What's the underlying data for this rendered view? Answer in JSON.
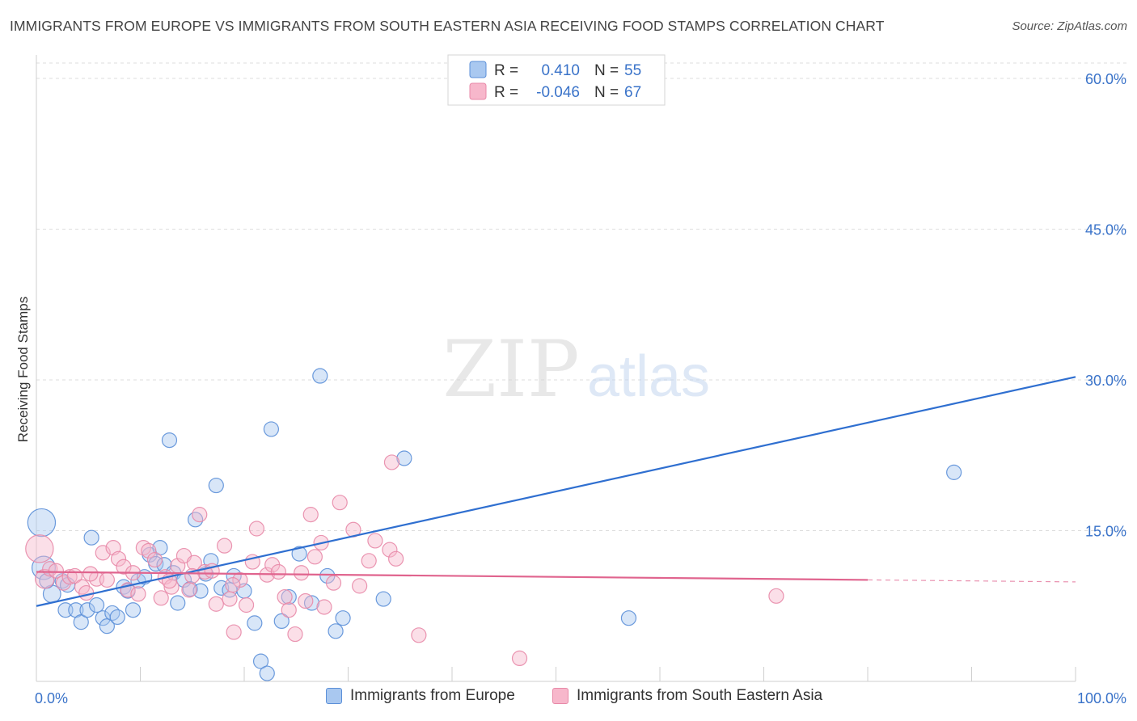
{
  "title": "IMMIGRANTS FROM EUROPE VS IMMIGRANTS FROM SOUTH EASTERN ASIA RECEIVING FOOD STAMPS CORRELATION CHART",
  "source": "Source: ZipAtlas.com",
  "watermark": {
    "zip": "ZIP",
    "atlas": "atlas"
  },
  "colors": {
    "europe_fill": "#a9c8f0",
    "europe_stroke": "#5b8fd8",
    "europe_line": "#2f6fd0",
    "asia_fill": "#f7b7cb",
    "asia_stroke": "#e889a8",
    "asia_line": "#e0648e",
    "tick_label": "#3a73c9",
    "grid": "#dddddd"
  },
  "stats_legend": [
    {
      "series": "europe",
      "r_label": "R =",
      "r_value": "0.410",
      "n_label": "N =",
      "n_value": "55"
    },
    {
      "series": "asia",
      "r_label": "R =",
      "r_value": "-0.046",
      "n_label": "N =",
      "n_value": "67"
    }
  ],
  "chart_data": {
    "type": "scatter",
    "title": "IMMIGRANTS FROM EUROPE VS IMMIGRANTS FROM SOUTH EASTERN ASIA RECEIVING FOOD STAMPS CORRELATION CHART",
    "ylabel": "Receiving Food Stamps",
    "xlabel": "",
    "xlim": [
      0,
      100
    ],
    "ylim": [
      0,
      60
    ],
    "x_ticks": [
      {
        "value": 0,
        "label": "0.0%"
      },
      {
        "value": 100,
        "label": "100.0%"
      }
    ],
    "y_ticks": [
      {
        "value": 15,
        "label": "15.0%"
      },
      {
        "value": 30,
        "label": "30.0%"
      },
      {
        "value": 45,
        "label": "45.0%"
      },
      {
        "value": 60,
        "label": "60.0%"
      }
    ],
    "grid": true,
    "legend_position": "bottom",
    "series": [
      {
        "name": "Immigrants from Europe",
        "key": "europe",
        "r": 0.41,
        "n": 55,
        "trend": {
          "x": [
            0,
            100
          ],
          "y": [
            7.5,
            30.3
          ]
        },
        "points": [
          {
            "x": 0.5,
            "y": 15.8,
            "s": 1.9
          },
          {
            "x": 0.7,
            "y": 11.3,
            "s": 1.6
          },
          {
            "x": 1.5,
            "y": 8.7,
            "s": 1.2
          },
          {
            "x": 1.0,
            "y": 10.0,
            "s": 1.0
          },
          {
            "x": 2.5,
            "y": 10.0,
            "s": 1.0
          },
          {
            "x": 3.0,
            "y": 9.6,
            "s": 1.0
          },
          {
            "x": 2.8,
            "y": 7.1,
            "s": 1.0
          },
          {
            "x": 3.8,
            "y": 7.1,
            "s": 1.0
          },
          {
            "x": 4.3,
            "y": 5.9,
            "s": 1.0
          },
          {
            "x": 4.9,
            "y": 7.1,
            "s": 1.0
          },
          {
            "x": 5.3,
            "y": 14.3,
            "s": 1.0
          },
          {
            "x": 5.8,
            "y": 7.6,
            "s": 1.0
          },
          {
            "x": 6.4,
            "y": 6.3,
            "s": 1.0
          },
          {
            "x": 6.8,
            "y": 5.5,
            "s": 1.0
          },
          {
            "x": 7.3,
            "y": 6.8,
            "s": 1.0
          },
          {
            "x": 7.8,
            "y": 6.4,
            "s": 1.0
          },
          {
            "x": 8.4,
            "y": 9.4,
            "s": 1.0
          },
          {
            "x": 8.8,
            "y": 9.0,
            "s": 1.0
          },
          {
            "x": 9.3,
            "y": 7.1,
            "s": 1.0
          },
          {
            "x": 9.8,
            "y": 10.0,
            "s": 1.0
          },
          {
            "x": 10.4,
            "y": 10.4,
            "s": 1.0
          },
          {
            "x": 10.9,
            "y": 12.6,
            "s": 1.0
          },
          {
            "x": 11.5,
            "y": 11.7,
            "s": 1.0
          },
          {
            "x": 11.9,
            "y": 13.3,
            "s": 1.0
          },
          {
            "x": 12.3,
            "y": 11.6,
            "s": 1.0
          },
          {
            "x": 12.8,
            "y": 24.0,
            "s": 1.0
          },
          {
            "x": 13.2,
            "y": 10.8,
            "s": 1.0
          },
          {
            "x": 13.6,
            "y": 7.8,
            "s": 1.0
          },
          {
            "x": 14.2,
            "y": 10.1,
            "s": 1.0
          },
          {
            "x": 14.8,
            "y": 9.2,
            "s": 1.0
          },
          {
            "x": 15.3,
            "y": 16.1,
            "s": 1.0
          },
          {
            "x": 15.8,
            "y": 9.0,
            "s": 1.0
          },
          {
            "x": 16.3,
            "y": 10.7,
            "s": 1.0
          },
          {
            "x": 16.8,
            "y": 12.0,
            "s": 1.0
          },
          {
            "x": 17.3,
            "y": 19.5,
            "s": 1.0
          },
          {
            "x": 17.8,
            "y": 9.3,
            "s": 1.0
          },
          {
            "x": 18.6,
            "y": 9.1,
            "s": 1.0
          },
          {
            "x": 19.0,
            "y": 10.5,
            "s": 1.0
          },
          {
            "x": 20.0,
            "y": 9.0,
            "s": 1.0
          },
          {
            "x": 21.0,
            "y": 5.8,
            "s": 1.0
          },
          {
            "x": 21.6,
            "y": 2.0,
            "s": 1.0
          },
          {
            "x": 22.2,
            "y": 0.8,
            "s": 1.0
          },
          {
            "x": 22.6,
            "y": 25.1,
            "s": 1.0
          },
          {
            "x": 23.6,
            "y": 6.0,
            "s": 1.0
          },
          {
            "x": 24.3,
            "y": 8.4,
            "s": 1.0
          },
          {
            "x": 25.3,
            "y": 12.7,
            "s": 1.0
          },
          {
            "x": 26.5,
            "y": 7.8,
            "s": 1.0
          },
          {
            "x": 27.3,
            "y": 30.4,
            "s": 1.0
          },
          {
            "x": 28.0,
            "y": 10.5,
            "s": 1.0
          },
          {
            "x": 28.8,
            "y": 5.0,
            "s": 1.0
          },
          {
            "x": 29.5,
            "y": 6.3,
            "s": 1.0
          },
          {
            "x": 33.4,
            "y": 8.2,
            "s": 1.0
          },
          {
            "x": 35.4,
            "y": 22.2,
            "s": 1.0
          },
          {
            "x": 57.0,
            "y": 6.3,
            "s": 1.0
          },
          {
            "x": 88.3,
            "y": 20.8,
            "s": 1.0
          }
        ]
      },
      {
        "name": "Immigrants from South Eastern Asia",
        "key": "asia",
        "r": -0.046,
        "n": 67,
        "trend": {
          "x": [
            0,
            80
          ],
          "y": [
            10.9,
            10.1
          ]
        },
        "trend_dashed": {
          "x": [
            80,
            100
          ],
          "y": [
            10.1,
            9.9
          ]
        },
        "points": [
          {
            "x": 0.3,
            "y": 13.2,
            "s": 1.9
          },
          {
            "x": 0.8,
            "y": 10.2,
            "s": 1.3
          },
          {
            "x": 1.3,
            "y": 11.2,
            "s": 1.0
          },
          {
            "x": 1.9,
            "y": 11.0,
            "s": 1.0
          },
          {
            "x": 2.6,
            "y": 9.8,
            "s": 1.0
          },
          {
            "x": 3.2,
            "y": 10.4,
            "s": 1.0
          },
          {
            "x": 3.7,
            "y": 10.5,
            "s": 1.0
          },
          {
            "x": 4.4,
            "y": 9.4,
            "s": 1.0
          },
          {
            "x": 4.8,
            "y": 8.8,
            "s": 1.0
          },
          {
            "x": 5.8,
            "y": 10.2,
            "s": 1.0
          },
          {
            "x": 6.4,
            "y": 12.8,
            "s": 1.0
          },
          {
            "x": 6.8,
            "y": 10.1,
            "s": 1.0
          },
          {
            "x": 7.4,
            "y": 13.3,
            "s": 1.0
          },
          {
            "x": 7.9,
            "y": 12.2,
            "s": 1.0
          },
          {
            "x": 8.4,
            "y": 11.4,
            "s": 1.0
          },
          {
            "x": 8.8,
            "y": 9.1,
            "s": 1.0
          },
          {
            "x": 9.3,
            "y": 10.8,
            "s": 1.0
          },
          {
            "x": 9.8,
            "y": 8.7,
            "s": 1.0
          },
          {
            "x": 10.3,
            "y": 13.3,
            "s": 1.0
          },
          {
            "x": 10.8,
            "y": 13.0,
            "s": 1.0
          },
          {
            "x": 11.4,
            "y": 12.1,
            "s": 1.0
          },
          {
            "x": 12.0,
            "y": 8.3,
            "s": 1.0
          },
          {
            "x": 12.4,
            "y": 10.4,
            "s": 1.0
          },
          {
            "x": 13.0,
            "y": 9.4,
            "s": 1.0
          },
          {
            "x": 13.6,
            "y": 11.5,
            "s": 1.0
          },
          {
            "x": 14.2,
            "y": 12.5,
            "s": 1.0
          },
          {
            "x": 14.7,
            "y": 9.1,
            "s": 1.0
          },
          {
            "x": 15.2,
            "y": 11.8,
            "s": 1.0
          },
          {
            "x": 15.7,
            "y": 16.6,
            "s": 1.0
          },
          {
            "x": 16.2,
            "y": 10.9,
            "s": 1.0
          },
          {
            "x": 16.9,
            "y": 11.0,
            "s": 1.0
          },
          {
            "x": 17.3,
            "y": 7.7,
            "s": 1.0
          },
          {
            "x": 18.1,
            "y": 13.5,
            "s": 1.0
          },
          {
            "x": 18.6,
            "y": 8.2,
            "s": 1.0
          },
          {
            "x": 19.0,
            "y": 4.9,
            "s": 1.0
          },
          {
            "x": 19.6,
            "y": 10.1,
            "s": 1.0
          },
          {
            "x": 20.2,
            "y": 7.6,
            "s": 1.0
          },
          {
            "x": 20.8,
            "y": 11.9,
            "s": 1.0
          },
          {
            "x": 21.2,
            "y": 15.2,
            "s": 1.0
          },
          {
            "x": 22.2,
            "y": 10.6,
            "s": 1.0
          },
          {
            "x": 22.7,
            "y": 11.6,
            "s": 1.0
          },
          {
            "x": 23.3,
            "y": 10.9,
            "s": 1.0
          },
          {
            "x": 23.9,
            "y": 8.4,
            "s": 1.0
          },
          {
            "x": 24.3,
            "y": 7.1,
            "s": 1.0
          },
          {
            "x": 24.9,
            "y": 4.7,
            "s": 1.0
          },
          {
            "x": 25.5,
            "y": 10.8,
            "s": 1.0
          },
          {
            "x": 25.9,
            "y": 8.0,
            "s": 1.0
          },
          {
            "x": 26.4,
            "y": 16.6,
            "s": 1.0
          },
          {
            "x": 26.8,
            "y": 12.4,
            "s": 1.0
          },
          {
            "x": 27.4,
            "y": 13.8,
            "s": 1.0
          },
          {
            "x": 27.7,
            "y": 7.4,
            "s": 1.0
          },
          {
            "x": 28.6,
            "y": 9.8,
            "s": 1.0
          },
          {
            "x": 29.2,
            "y": 17.8,
            "s": 1.0
          },
          {
            "x": 30.5,
            "y": 15.1,
            "s": 1.0
          },
          {
            "x": 31.1,
            "y": 9.5,
            "s": 1.0
          },
          {
            "x": 32.0,
            "y": 12.0,
            "s": 1.0
          },
          {
            "x": 32.6,
            "y": 14.0,
            "s": 1.0
          },
          {
            "x": 34.0,
            "y": 13.1,
            "s": 1.0
          },
          {
            "x": 34.6,
            "y": 12.2,
            "s": 1.0
          },
          {
            "x": 34.2,
            "y": 21.8,
            "s": 1.0
          },
          {
            "x": 36.8,
            "y": 4.6,
            "s": 1.0
          },
          {
            "x": 46.5,
            "y": 2.3,
            "s": 1.0
          },
          {
            "x": 71.2,
            "y": 8.5,
            "s": 1.0
          },
          {
            "x": 12.8,
            "y": 10.0,
            "s": 1.0
          },
          {
            "x": 5.2,
            "y": 10.7,
            "s": 1.0
          },
          {
            "x": 15.0,
            "y": 10.5,
            "s": 1.0
          },
          {
            "x": 18.9,
            "y": 9.6,
            "s": 1.0
          }
        ]
      }
    ]
  },
  "legend_bottom": [
    {
      "series": "europe",
      "label": "Immigrants from Europe"
    },
    {
      "series": "asia",
      "label": "Immigrants from South Eastern Asia"
    }
  ]
}
